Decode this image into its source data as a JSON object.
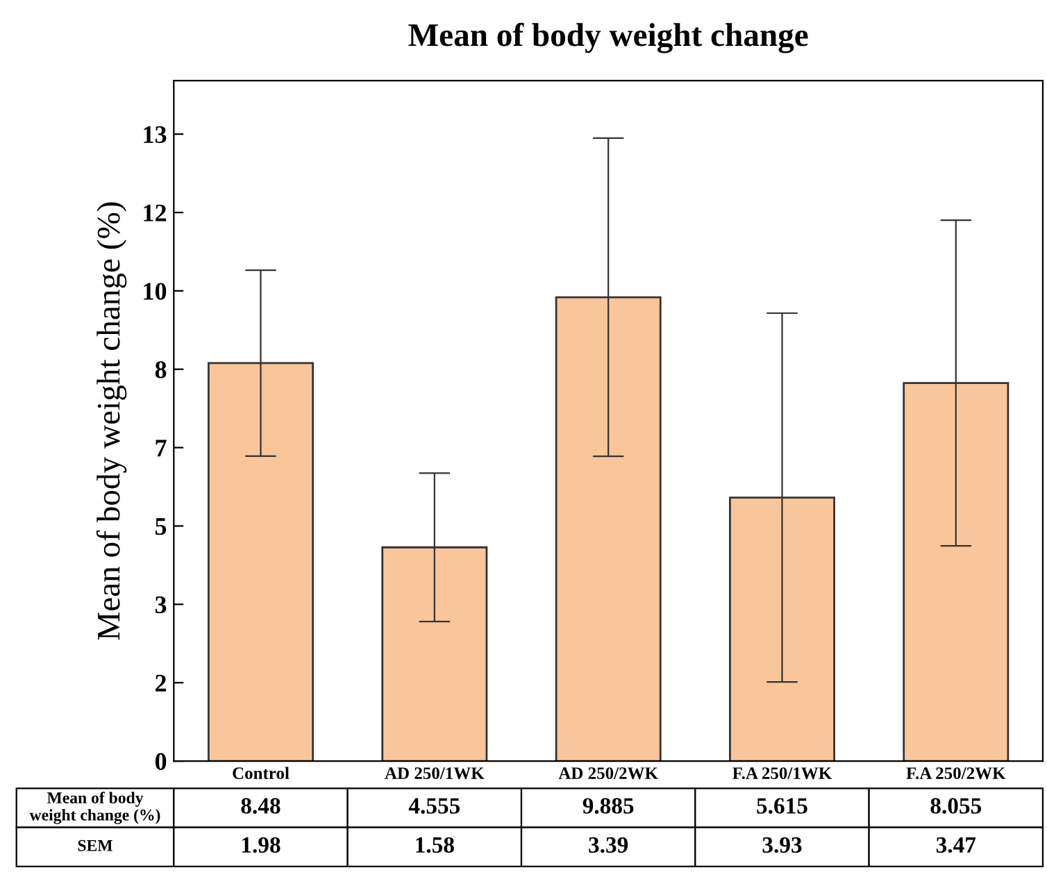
{
  "chart_data": {
    "type": "bar",
    "title": "Mean of body weight change",
    "ylabel": "Mean of body weight change (%)",
    "categories": [
      "Control",
      "AD 250/1WK",
      "AD 250/2WK",
      "F.A 250/1WK",
      "F.A 250/2WK"
    ],
    "values": [
      8.48,
      4.555,
      9.885,
      5.615,
      8.055
    ],
    "errors": [
      1.98,
      1.58,
      3.39,
      3.93,
      3.47
    ],
    "color": "#f9c59b",
    "ylim": [
      0,
      14.5
    ],
    "yticks": [
      {
        "value": 0,
        "label": "0"
      },
      {
        "value": 1.67,
        "label": "2"
      },
      {
        "value": 3.34,
        "label": "3"
      },
      {
        "value": 5.01,
        "label": "5"
      },
      {
        "value": 6.68,
        "label": "7"
      },
      {
        "value": 8.35,
        "label": "8"
      },
      {
        "value": 10.02,
        "label": "10"
      },
      {
        "value": 11.69,
        "label": "12"
      },
      {
        "value": 13.36,
        "label": "13"
      }
    ],
    "data_labels": true,
    "annotations": [
      "Mean of body weight change (%)",
      "SEM",
      "1.98",
      "1.58",
      "3.39",
      "3.93",
      "3.47"
    ],
    "grid": false,
    "legend": false
  }
}
